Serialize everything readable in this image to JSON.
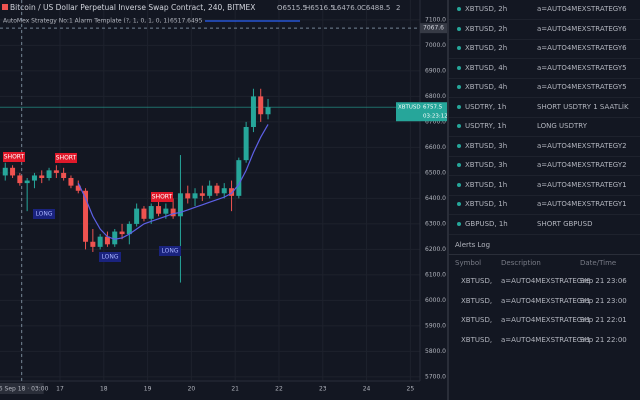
{
  "header": {
    "title": "Bitcoin / US Dollar Perpetual Inverse Swap Contract, 240, BITMEX",
    "open": "O6515.5",
    "high": "H6516.5",
    "low": "L6476.0",
    "close": "C6488.5",
    "count": "2"
  },
  "indicator": {
    "name": "AutoMex Strategy No:1 Alarm Template (?, 1, 0, 1, 0, 1)",
    "value": "6517.6495"
  },
  "chart_data": {
    "type": "candlestick",
    "candles": {
      "x": [
        15.75,
        15.917,
        16.083,
        16.25,
        16.417,
        16.583,
        16.75,
        16.917,
        17.083,
        17.25,
        17.417,
        17.583,
        17.75,
        17.917,
        18.083,
        18.25,
        18.417,
        18.583,
        18.75,
        18.917,
        19.083,
        19.25,
        19.417,
        19.583,
        19.75,
        19.917,
        20.083,
        20.25,
        20.417,
        20.583,
        20.75,
        20.917,
        21.083,
        21.25,
        21.417,
        21.583,
        21.75
      ],
      "open": [
        6490,
        6520,
        6490,
        6460,
        6470,
        6490,
        6480,
        6510,
        6500,
        6480,
        6450,
        6430,
        6230,
        6210,
        6250,
        6220,
        6270,
        6260,
        6300,
        6360,
        6320,
        6370,
        6340,
        6360,
        6330,
        6420,
        6400,
        6420,
        6410,
        6450,
        6420,
        6440,
        6410,
        6550,
        6680,
        6800,
        6730
      ],
      "high": [
        6540,
        6530,
        6500,
        6480,
        6500,
        6510,
        6520,
        6530,
        6520,
        6490,
        6470,
        6440,
        6280,
        6260,
        6270,
        6280,
        6300,
        6310,
        6380,
        6370,
        6380,
        6390,
        6380,
        6400,
        6570,
        6450,
        6440,
        6450,
        6470,
        6460,
        6460,
        6470,
        6560,
        6700,
        6830,
        6830,
        6790
      ],
      "low": [
        6470,
        6480,
        6450,
        6350,
        6440,
        6460,
        6470,
        6480,
        6470,
        6440,
        6420,
        6200,
        6190,
        6200,
        6210,
        6210,
        6240,
        6220,
        6290,
        6310,
        6300,
        6330,
        6320,
        6320,
        6070,
        6380,
        6370,
        6390,
        6400,
        6410,
        6400,
        6350,
        6400,
        6540,
        6660,
        6700,
        6710
      ],
      "close": [
        6520,
        6490,
        6460,
        6470,
        6490,
        6480,
        6510,
        6500,
        6480,
        6450,
        6430,
        6230,
        6210,
        6250,
        6220,
        6270,
        6260,
        6300,
        6360,
        6320,
        6370,
        6340,
        6360,
        6330,
        6420,
        6400,
        6420,
        6410,
        6450,
        6420,
        6440,
        6410,
        6550,
        6680,
        6800,
        6730,
        6757.5
      ],
      "up_color": "#26a69a",
      "down_color": "#ef5350"
    },
    "ma": {
      "color": "#5d60e6",
      "values": [
        null,
        null,
        null,
        null,
        null,
        null,
        null,
        null,
        null,
        null,
        6460,
        6400,
        6330,
        6280,
        6250,
        6240,
        6245,
        6260,
        6280,
        6300,
        6310,
        6320,
        6330,
        6340,
        6345,
        6355,
        6365,
        6375,
        6385,
        6395,
        6405,
        6420,
        6455,
        6510,
        6580,
        6640,
        6690
      ]
    },
    "signals": [
      "SHORT",
      "SHORT",
      "LONG",
      "LONG",
      "SHORT",
      "LONG"
    ],
    "ylim": [
      5684,
      7178
    ],
    "yticks": [
      {
        "value": 5700,
        "label": "5700.0"
      },
      {
        "value": 5800,
        "label": "5800.0"
      },
      {
        "value": 5900,
        "label": "5900.0"
      },
      {
        "value": 6000,
        "label": "6000.0"
      },
      {
        "value": 6100,
        "label": "6100.0"
      },
      {
        "value": 6200,
        "label": "6200.0"
      },
      {
        "value": 6300,
        "label": "6300.0"
      },
      {
        "value": 6400,
        "label": "6400.0"
      },
      {
        "value": 6500,
        "label": "6500.0"
      },
      {
        "value": 6600,
        "label": "6600.0"
      },
      {
        "value": 6700,
        "label": "6700.0"
      },
      {
        "value": 6800,
        "label": "6800.0"
      },
      {
        "value": 6900,
        "label": "6900.0"
      },
      {
        "value": 7000,
        "label": "7000.0"
      },
      {
        "value": 7100,
        "label": "7100.0"
      }
    ],
    "xlim": [
      15.63,
      25.22
    ],
    "xticks": [
      {
        "value": 16.125,
        "label": "16 Sep 18 · 03:00"
      },
      17,
      18,
      19,
      20,
      21,
      22,
      23,
      24,
      25
    ],
    "crosshair": 7067.6,
    "last": {
      "symbol": "XBTUSD",
      "value": 6757.5,
      "countdown": "03:23:12"
    },
    "grid": true
  },
  "alerts": {
    "list": [
      {
        "symbol": "XBTUSD, 2h",
        "message": "a=AUTO4MEXSTRATEGY6"
      },
      {
        "symbol": "XBTUSD, 2h",
        "message": "a=AUTO4MEXSTRATEGY6"
      },
      {
        "symbol": "XBTUSD, 2h",
        "message": "a=AUTO4MEXSTRATEGY6"
      },
      {
        "symbol": "XBTUSD, 4h",
        "message": "a=AUTO4MEXSTRATEGY5"
      },
      {
        "symbol": "XBTUSD, 4h",
        "message": "a=AUTO4MEXSTRATEGY5"
      },
      {
        "symbol": "USDTRY, 1h",
        "message": "SHORT USDTRY 1 SAATLİK"
      },
      {
        "symbol": "USDTRY, 1h",
        "message": "LONG USDTRY"
      },
      {
        "symbol": "XBTUSD, 3h",
        "message": "a=AUTO4MEXSTRATEGY2"
      },
      {
        "symbol": "XBTUSD, 3h",
        "message": "a=AUTO4MEXSTRATEGY2"
      },
      {
        "symbol": "XBTUSD, 1h",
        "message": "a=AUTO4MEXSTRATEGY1"
      },
      {
        "symbol": "XBTUSD, 1h",
        "message": "a=AUTO4MEXSTRATEGY1"
      },
      {
        "symbol": "GBPUSD, 1h",
        "message": "SHORT GBPUSD"
      }
    ],
    "log": {
      "title": "Alerts Log",
      "columns": [
        "Symbol",
        "Description",
        "Date/Time"
      ],
      "rows": [
        [
          "XBTUSD,",
          "a=AUTO4MEXSTRATEGY6",
          "Sep 21 23:06"
        ],
        [
          "XBTUSD,",
          "a=AUTO4MEXSTRATEGY1",
          "Sep 21 23:00"
        ],
        [
          "XBTUSD,",
          "a=AUTO4MEXSTRATEGY1",
          "Sep 21 22:01"
        ],
        [
          "XBTUSD,",
          "a=AUTO4MEXSTRATEGY1",
          "Sep 21 22:00"
        ]
      ]
    }
  }
}
